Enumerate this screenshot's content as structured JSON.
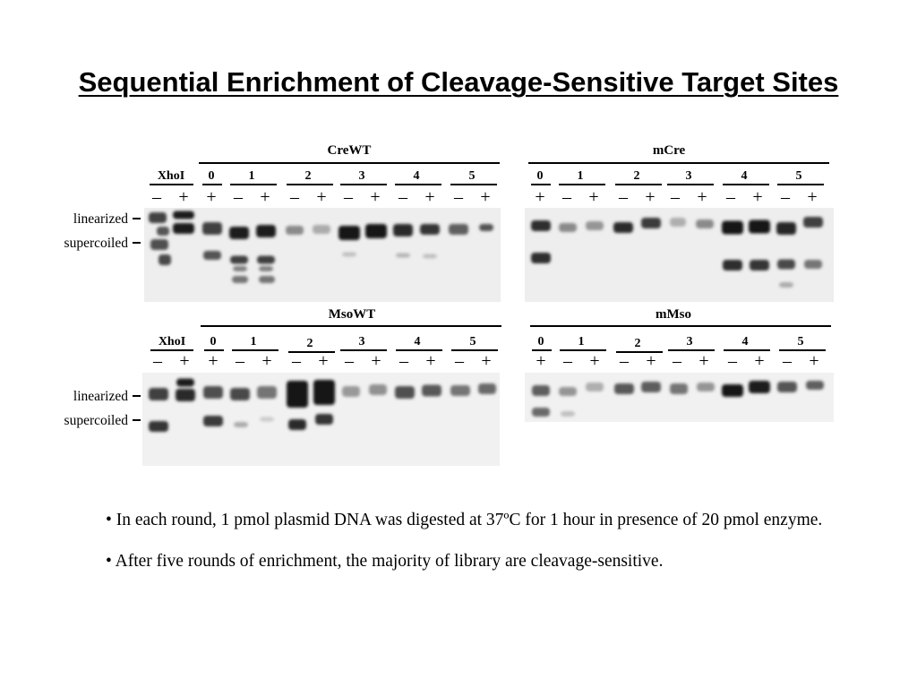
{
  "title": "Sequential Enrichment of Cleavage-Sensitive Target Sites",
  "figure": {
    "row_labels": {
      "linearized": "linearized",
      "supercoiled": "supercoiled"
    },
    "panels": [
      {
        "title": "CreWT",
        "control": {
          "label": "XhoI",
          "signs": [
            "–",
            "+"
          ]
        },
        "rounds": [
          {
            "label": "0",
            "signs": [
              "+"
            ]
          },
          {
            "label": "1",
            "signs": [
              "–",
              "+"
            ]
          },
          {
            "label": "2",
            "signs": [
              "–",
              "+"
            ]
          },
          {
            "label": "3",
            "signs": [
              "–",
              "+"
            ]
          },
          {
            "label": "4",
            "signs": [
              "–",
              "+"
            ]
          },
          {
            "label": "5",
            "signs": [
              "–",
              "+"
            ]
          }
        ]
      },
      {
        "title": "mCre",
        "rounds": [
          {
            "label": "0",
            "signs": [
              "+"
            ]
          },
          {
            "label": "1",
            "signs": [
              "–",
              "+"
            ]
          },
          {
            "label": "2",
            "signs": [
              "–",
              "+"
            ]
          },
          {
            "label": "3",
            "signs": [
              "–",
              "+"
            ]
          },
          {
            "label": "4",
            "signs": [
              "–",
              "+"
            ]
          },
          {
            "label": "5",
            "signs": [
              "–",
              "+"
            ]
          }
        ]
      },
      {
        "title": "MsoWT",
        "control": {
          "label": "XhoI",
          "signs": [
            "–",
            "+"
          ]
        },
        "rounds": [
          {
            "label": "0",
            "signs": [
              "+"
            ]
          },
          {
            "label": "1",
            "signs": [
              "–",
              "+"
            ]
          },
          {
            "label": "2",
            "signs": [
              "–",
              "+"
            ]
          },
          {
            "label": "3",
            "signs": [
              "–",
              "+"
            ]
          },
          {
            "label": "4",
            "signs": [
              "–",
              "+"
            ]
          },
          {
            "label": "5",
            "signs": [
              "–",
              "+"
            ]
          }
        ]
      },
      {
        "title": "mMso",
        "rounds": [
          {
            "label": "0",
            "signs": [
              "+"
            ]
          },
          {
            "label": "1",
            "signs": [
              "–",
              "+"
            ]
          },
          {
            "label": "2",
            "signs": [
              "–",
              "+"
            ]
          },
          {
            "label": "3",
            "signs": [
              "–",
              "+"
            ]
          },
          {
            "label": "4",
            "signs": [
              "–",
              "+"
            ]
          },
          {
            "label": "5",
            "signs": [
              "–",
              "+"
            ]
          }
        ]
      }
    ]
  },
  "bullets": [
    "• In each round, 1 pmol plasmid DNA  was digested at 37ºC for 1 hour in presence of 20 pmol enzyme.",
    "• After five rounds of enrichment, the majority of library are cleavage-sensitive."
  ]
}
